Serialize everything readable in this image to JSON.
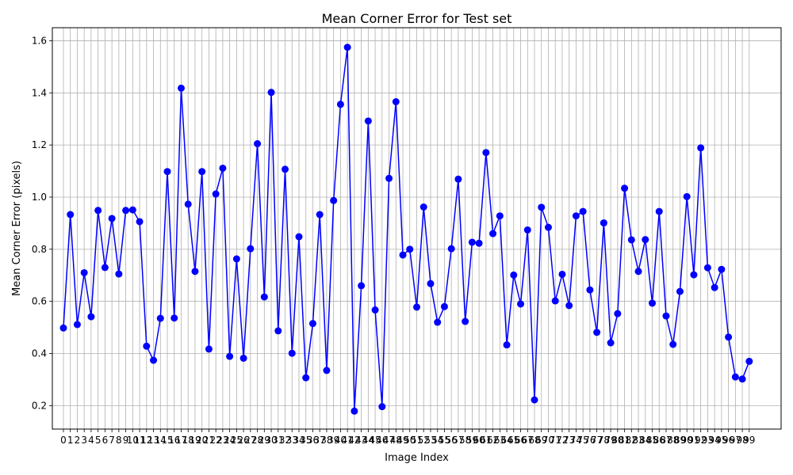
{
  "chart_data": {
    "type": "line",
    "title": "Mean Corner Error for Test set",
    "xlabel": "Image Index",
    "ylabel": "Mean Corner Error (pixels)",
    "x": [
      0,
      1,
      2,
      3,
      4,
      5,
      6,
      7,
      8,
      9,
      10,
      11,
      12,
      13,
      14,
      15,
      16,
      17,
      18,
      19,
      20,
      21,
      22,
      23,
      24,
      25,
      26,
      27,
      28,
      29,
      30,
      31,
      32,
      33,
      34,
      35,
      36,
      37,
      38,
      39,
      40,
      41,
      42,
      43,
      44,
      45,
      46,
      47,
      48,
      49,
      50,
      51,
      52,
      53,
      54,
      55,
      56,
      57,
      58,
      59,
      60,
      61,
      62,
      63,
      64,
      65,
      66,
      67,
      68,
      69,
      70,
      71,
      72,
      73,
      74,
      75,
      76,
      77,
      78,
      79,
      80,
      81,
      82,
      83,
      84,
      85,
      86,
      87,
      88,
      89,
      90,
      91,
      92,
      93,
      94,
      95,
      96,
      97,
      98,
      99
    ],
    "xlim": [
      -1.6,
      103.6
    ],
    "ylim": [
      0.11,
      1.65
    ],
    "yticks": [
      0.2,
      0.4,
      0.6,
      0.8,
      1.0,
      1.2,
      1.4,
      1.6
    ],
    "grid": true,
    "series": [
      {
        "name": "",
        "color": "#0000ff",
        "marker": "circle",
        "values": [
          0.498,
          0.933,
          0.511,
          0.71,
          0.541,
          0.949,
          0.73,
          0.918,
          0.705,
          0.949,
          0.951,
          0.906,
          0.428,
          0.374,
          0.535,
          1.098,
          0.536,
          1.418,
          0.973,
          0.715,
          1.098,
          0.417,
          1.012,
          1.111,
          0.389,
          0.763,
          0.382,
          0.802,
          1.205,
          0.617,
          1.402,
          0.487,
          1.107,
          0.401,
          0.848,
          0.307,
          0.515,
          0.933,
          0.335,
          0.987,
          1.356,
          1.575,
          0.179,
          0.66,
          1.292,
          0.567,
          0.196,
          1.072,
          1.366,
          0.778,
          0.8,
          0.578,
          0.962,
          0.668,
          0.52,
          0.58,
          0.802,
          1.069,
          0.523,
          0.827,
          0.823,
          1.171,
          0.86,
          0.928,
          0.433,
          0.701,
          0.59,
          0.874,
          0.222,
          0.961,
          0.884,
          0.602,
          0.704,
          0.584,
          0.928,
          0.945,
          0.644,
          0.481,
          0.901,
          0.441,
          0.553,
          1.034,
          0.836,
          0.715,
          0.837,
          0.593,
          0.945,
          0.544,
          0.435,
          0.638,
          1.002,
          0.702,
          1.189,
          0.729,
          0.653,
          0.723,
          0.463,
          0.31,
          0.302,
          0.37
        ]
      }
    ]
  }
}
